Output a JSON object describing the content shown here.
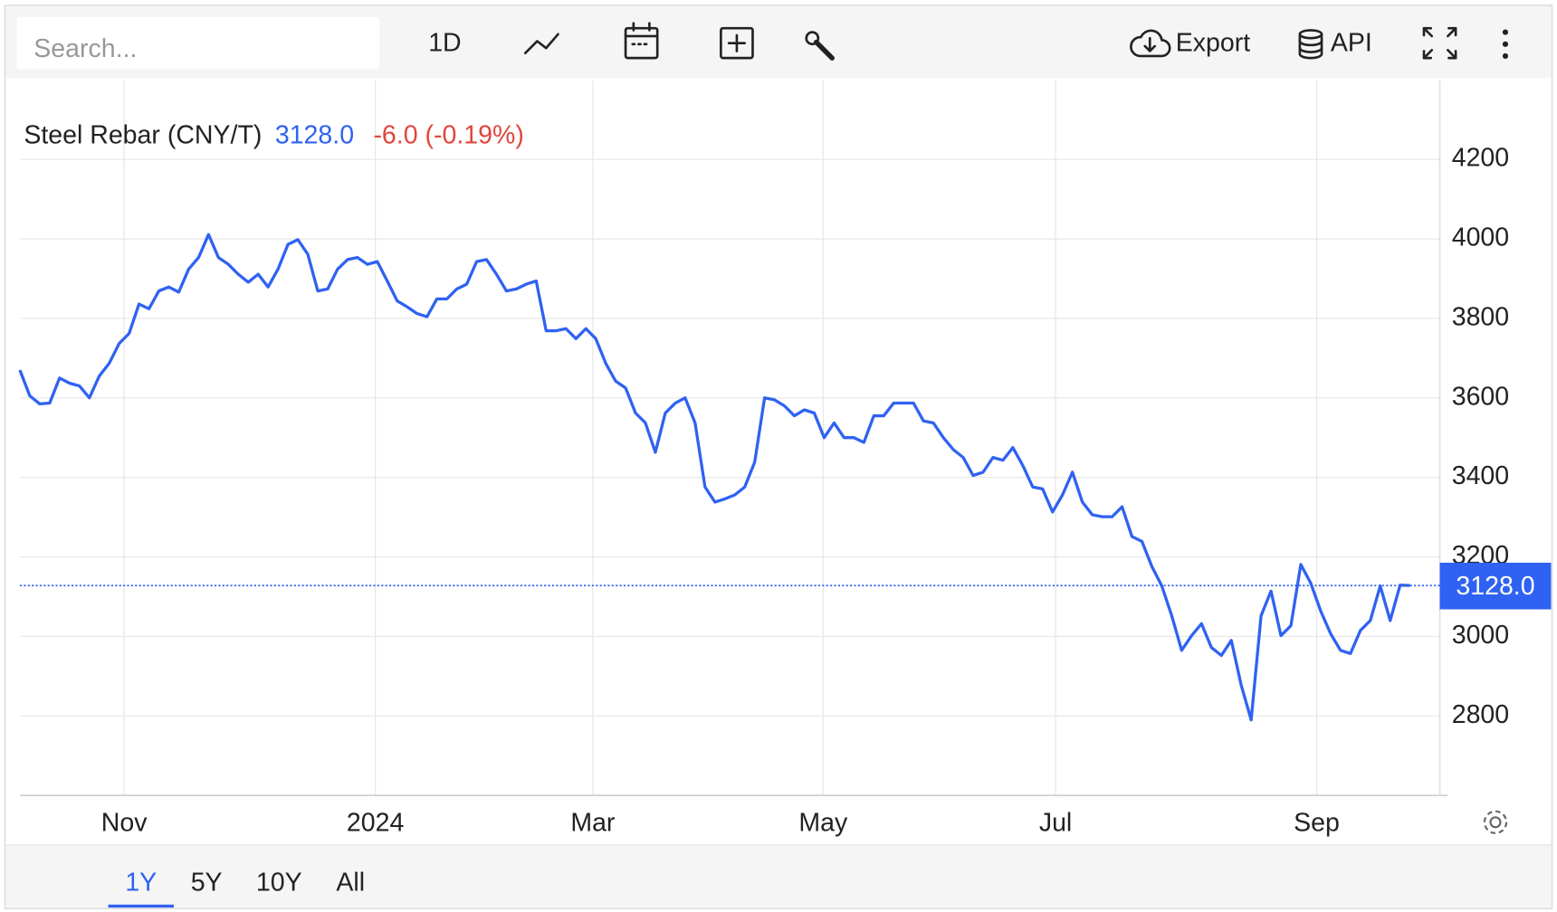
{
  "toolbar": {
    "search_placeholder": "Search...",
    "interval": "1D",
    "export": "Export",
    "api": "API"
  },
  "ranges": [
    "1Y",
    "5Y",
    "10Y",
    "All"
  ],
  "chart_data": {
    "type": "line",
    "title": "Steel Rebar (CNY/T)",
    "price": "3128.0",
    "change": "-6.0 (-0.19%)",
    "series": [
      {
        "name": "Steel Rebar",
        "color": "#2f62f2",
        "values": [
          3670,
          3605,
          3585,
          3587,
          3650,
          3637,
          3630,
          3600,
          3655,
          3687,
          3737,
          3762,
          3836,
          3824,
          3869,
          3879,
          3866,
          3924,
          3953,
          4011,
          3953,
          3936,
          3911,
          3891,
          3911,
          3879,
          3924,
          3986,
          3998,
          3961,
          3869,
          3874,
          3924,
          3948,
          3953,
          3936,
          3943,
          3894,
          3844,
          3829,
          3812,
          3804,
          3849,
          3849,
          3874,
          3886,
          3943,
          3948,
          3911,
          3869,
          3874,
          3886,
          3894,
          3769,
          3769,
          3774,
          3749,
          3774,
          3749,
          3687,
          3642,
          3625,
          3562,
          3537,
          3463,
          3562,
          3587,
          3600,
          3537,
          3376,
          3338,
          3346,
          3356,
          3376,
          3438,
          3600,
          3595,
          3580,
          3555,
          3570,
          3562,
          3500,
          3537,
          3500,
          3500,
          3488,
          3555,
          3555,
          3587,
          3587,
          3587,
          3542,
          3537,
          3500,
          3470,
          3450,
          3405,
          3413,
          3450,
          3443,
          3475,
          3430,
          3376,
          3371,
          3313,
          3356,
          3413,
          3338,
          3306,
          3301,
          3301,
          3326,
          3251,
          3239,
          3176,
          3127,
          3052,
          2965,
          3002,
          3032,
          2972,
          2952,
          2990,
          2877,
          2790,
          3052,
          3114,
          3002,
          3027,
          3181,
          3134,
          3064,
          3007,
          2965,
          2957,
          3015,
          3040,
          3127,
          3040,
          3129,
          3128
        ]
      }
    ],
    "xlim": [
      0,
      140
    ],
    "xticks": [
      {
        "value": 10.5,
        "label": "Nov"
      },
      {
        "value": 35.8,
        "label": "2024"
      },
      {
        "value": 57.7,
        "label": "Mar"
      },
      {
        "value": 80.9,
        "label": "May"
      },
      {
        "value": 104.3,
        "label": "Jul"
      },
      {
        "value": 130.6,
        "label": "Sep"
      }
    ],
    "ylim": [
      2600,
      4400
    ],
    "yticks": [
      2800,
      3000,
      3200,
      3400,
      3600,
      3800,
      4000,
      4200
    ],
    "grid": true
  }
}
